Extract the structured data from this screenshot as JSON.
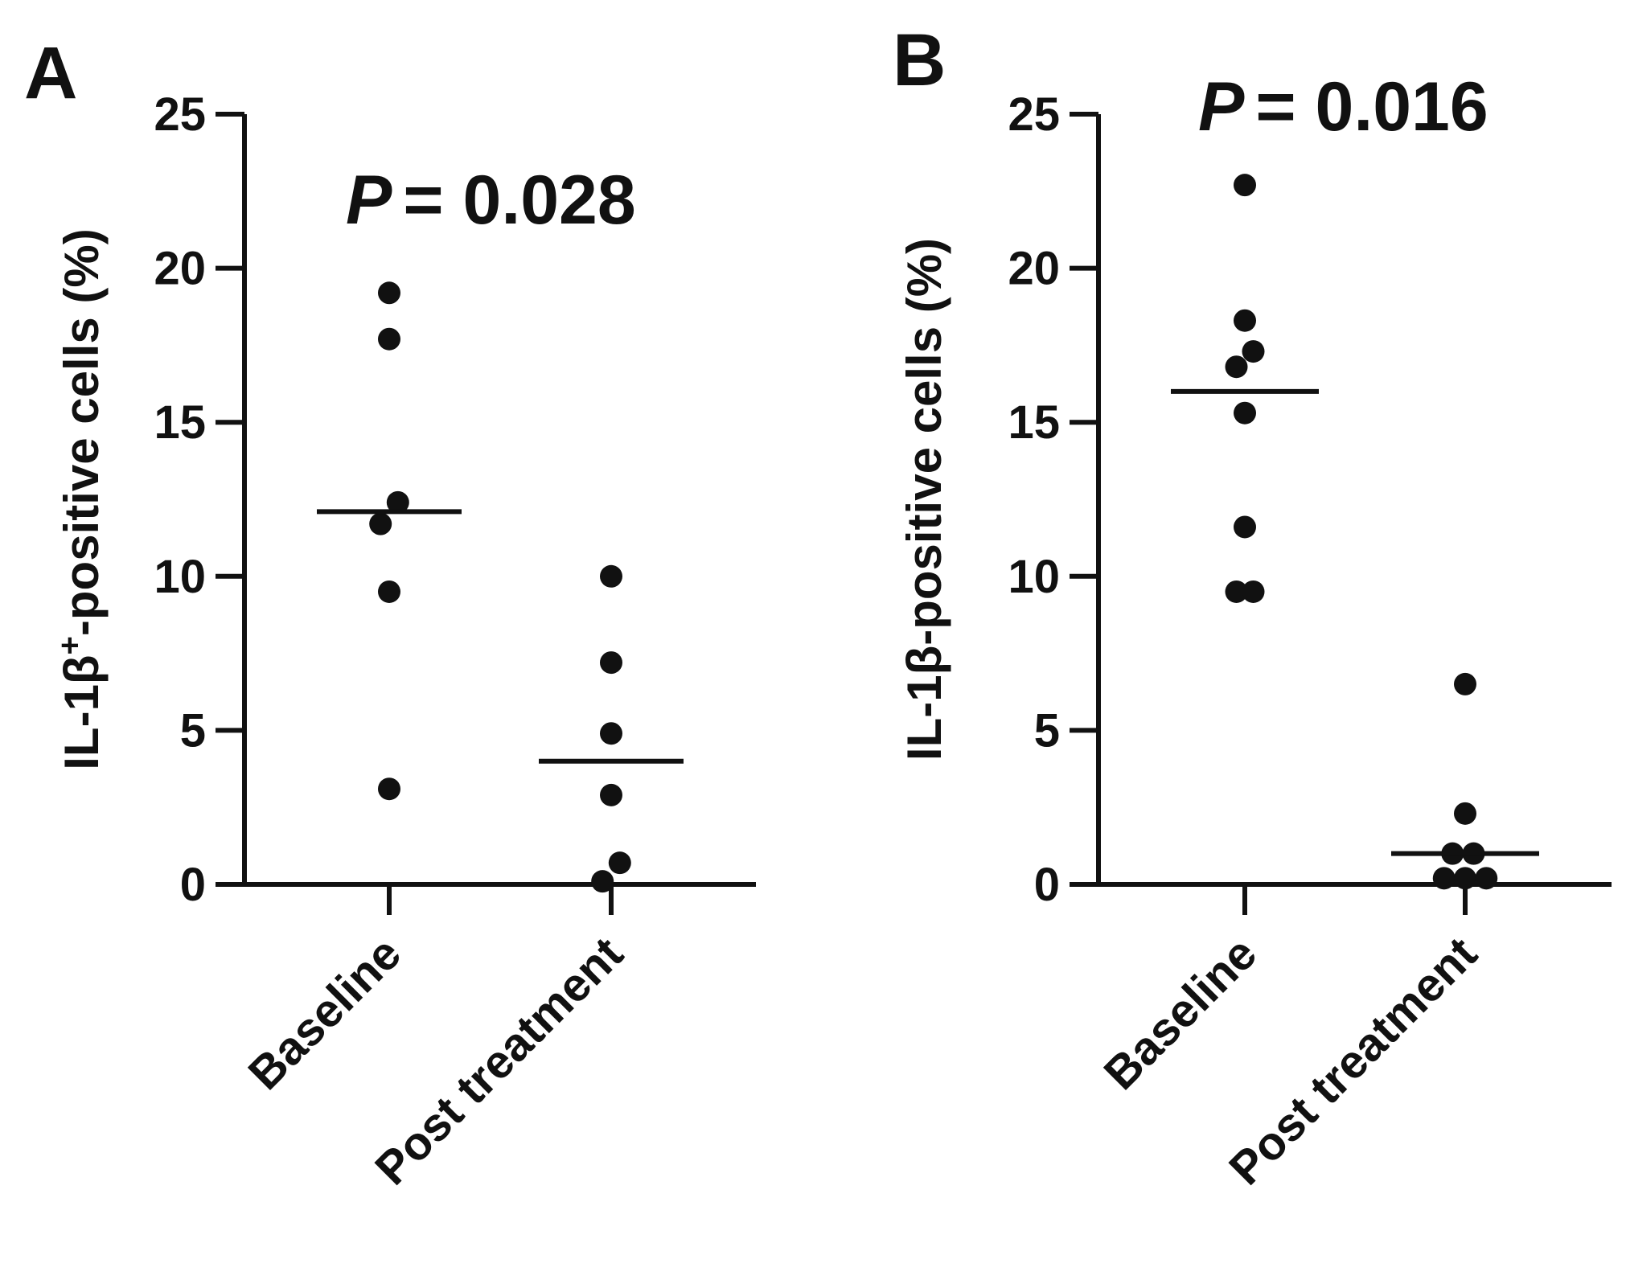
{
  "chart_data": [
    {
      "type": "scatter",
      "panel_label": "A",
      "ylabel": {
        "prefix": "IL-1β",
        "superscript": "+",
        "suffix": "-positive cells (%)"
      },
      "xlabel": "",
      "ylim": [
        0,
        25
      ],
      "y_ticks": [
        0,
        5,
        10,
        15,
        20,
        25
      ],
      "y_tick_labels": [
        "0",
        "5",
        "10",
        "15",
        "20",
        "25"
      ],
      "categories": [
        "Baseline",
        "Post treatment"
      ],
      "annotation": {
        "p_label": "P",
        "p_value_text": "= 0.028"
      },
      "series": [
        {
          "name": "Baseline",
          "values": [
            19.2,
            17.7,
            12.4,
            11.7,
            9.5,
            3.1
          ],
          "jitter": [
            0,
            0,
            0.1,
            -0.1,
            0,
            0
          ],
          "median": 12.1
        },
        {
          "name": "Post treatment",
          "values": [
            10.0,
            7.2,
            4.9,
            2.9,
            0.7,
            0.1
          ],
          "jitter": [
            0,
            0,
            0,
            0,
            0.1,
            -0.1
          ],
          "median": 4.0
        }
      ]
    },
    {
      "type": "scatter",
      "panel_label": "B",
      "ylabel": {
        "prefix": "IL-1β",
        "superscript": "",
        "suffix": "-positive cells (%)"
      },
      "xlabel": "",
      "ylim": [
        0,
        25
      ],
      "y_ticks": [
        0,
        5,
        10,
        15,
        20,
        25
      ],
      "y_tick_labels": [
        "0",
        "5",
        "10",
        "15",
        "20",
        "25"
      ],
      "categories": [
        "Baseline",
        "Post treatment"
      ],
      "annotation": {
        "p_label": "P",
        "p_value_text": "= 0.016"
      },
      "series": [
        {
          "name": "Baseline",
          "values": [
            22.7,
            18.3,
            17.3,
            16.8,
            15.3,
            11.6,
            9.5,
            9.5
          ],
          "jitter": [
            0,
            0,
            0.1,
            -0.1,
            0,
            0,
            -0.1,
            0.1
          ],
          "median": 16.0
        },
        {
          "name": "Post treatment",
          "values": [
            6.5,
            2.3,
            1.0,
            1.0,
            0.2,
            0.2,
            0.2
          ],
          "jitter": [
            0,
            0,
            -0.15,
            0.1,
            -0.25,
            0,
            0.25
          ],
          "median": 1.0
        }
      ]
    }
  ]
}
